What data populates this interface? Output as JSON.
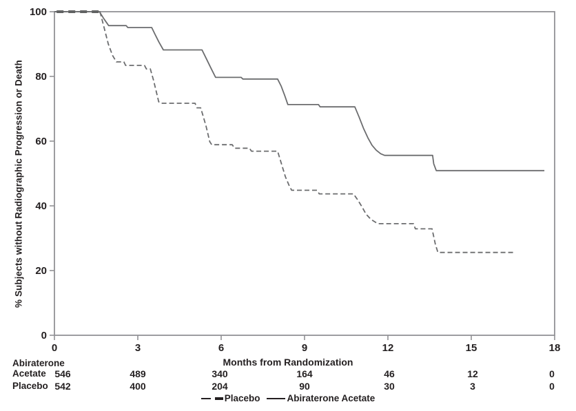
{
  "figure": {
    "y_axis_title": "% Subjects without Radiographic Progression or Death",
    "x_axis_title": "Months from Randomization"
  },
  "chart_data": {
    "type": "line",
    "subtype": "kaplan-meier-step-curves",
    "title": "",
    "xlabel": "Months from Randomization",
    "ylabel": "% Subjects without Radiographic Progression or Death",
    "xlim": [
      0,
      18
    ],
    "ylim": [
      0,
      100
    ],
    "xticks": [
      "0",
      "3",
      "6",
      "9",
      "12",
      "15",
      "18"
    ],
    "xtick_values": [
      0,
      3,
      6,
      9,
      12,
      15,
      18
    ],
    "yticks": [
      "0",
      "20",
      "40",
      "60",
      "80",
      "100"
    ],
    "ytick_values": [
      0,
      20,
      40,
      60,
      80,
      100
    ],
    "grid": false,
    "framed_plot_box": true,
    "axis_color": "#919195",
    "text_color": "#231f20",
    "legend_position": "bottom-center",
    "series": [
      {
        "name": "Placebo",
        "style": "dashed",
        "color": "#6b6c6e",
        "line_width": 1.8,
        "dash_pattern": "7 4",
        "highlight_color": "#2b2b2b",
        "highlight_until_month": 1.64,
        "points": [
          [
            0,
            100
          ],
          [
            1.64,
            100
          ],
          [
            1.79,
            95.0
          ],
          [
            1.94,
            90.0
          ],
          [
            2.09,
            86.5
          ],
          [
            2.23,
            84.5
          ],
          [
            2.5,
            84.5
          ],
          [
            2.56,
            83.4
          ],
          [
            3.24,
            83.4
          ],
          [
            3.31,
            82.3
          ],
          [
            3.45,
            82.3
          ],
          [
            3.56,
            79.0
          ],
          [
            3.66,
            75.5
          ],
          [
            3.75,
            72.2
          ],
          [
            3.81,
            71.7
          ],
          [
            5.06,
            71.7
          ],
          [
            5.13,
            70.3
          ],
          [
            5.26,
            70.3
          ],
          [
            5.36,
            67.5
          ],
          [
            5.46,
            64.5
          ],
          [
            5.53,
            62.0
          ],
          [
            5.59,
            59.8
          ],
          [
            5.66,
            58.9
          ],
          [
            6.4,
            58.9
          ],
          [
            6.48,
            57.8
          ],
          [
            7.02,
            57.8
          ],
          [
            7.09,
            56.9
          ],
          [
            8.03,
            56.9
          ],
          [
            8.17,
            53.0
          ],
          [
            8.31,
            49.0
          ],
          [
            8.46,
            46.0
          ],
          [
            8.54,
            44.8
          ],
          [
            9.45,
            44.8
          ],
          [
            9.53,
            43.7
          ],
          [
            10.76,
            43.7
          ],
          [
            10.91,
            41.9
          ],
          [
            11.06,
            39.8
          ],
          [
            11.21,
            37.5
          ],
          [
            11.39,
            35.8
          ],
          [
            11.56,
            34.9
          ],
          [
            11.64,
            34.5
          ],
          [
            12.92,
            34.5
          ],
          [
            12.99,
            32.9
          ],
          [
            13.59,
            32.9
          ],
          [
            13.71,
            28.0
          ],
          [
            13.8,
            25.6
          ],
          [
            16.56,
            25.6
          ]
        ]
      },
      {
        "name": "Abiraterone Acetate",
        "style": "solid",
        "color": "#6b6c6e",
        "line_width": 1.8,
        "points": [
          [
            0,
            100
          ],
          [
            1.62,
            100
          ],
          [
            1.78,
            97.8
          ],
          [
            1.95,
            95.7
          ],
          [
            2.58,
            95.7
          ],
          [
            2.64,
            95.1
          ],
          [
            3.5,
            95.1
          ],
          [
            3.62,
            93.0
          ],
          [
            3.76,
            90.6
          ],
          [
            3.92,
            88.2
          ],
          [
            5.31,
            88.2
          ],
          [
            5.46,
            85.6
          ],
          [
            5.63,
            82.6
          ],
          [
            5.8,
            79.7
          ],
          [
            6.72,
            79.7
          ],
          [
            6.78,
            79.2
          ],
          [
            8.03,
            79.2
          ],
          [
            8.16,
            77.0
          ],
          [
            8.29,
            74.0
          ],
          [
            8.4,
            71.3
          ],
          [
            9.5,
            71.3
          ],
          [
            9.56,
            70.6
          ],
          [
            10.81,
            70.6
          ],
          [
            10.96,
            67.5
          ],
          [
            11.12,
            64.0
          ],
          [
            11.28,
            61.0
          ],
          [
            11.43,
            58.7
          ],
          [
            11.58,
            57.2
          ],
          [
            11.74,
            56.1
          ],
          [
            11.88,
            55.6
          ],
          [
            13.61,
            55.6
          ],
          [
            13.65,
            53.0
          ],
          [
            13.74,
            50.9
          ],
          [
            17.63,
            50.9
          ]
        ]
      }
    ]
  },
  "risk_table": {
    "row1_label_line1": "Abiraterone",
    "row1_label_line2": "Acetate",
    "row2_label": "Placebo",
    "rows": [
      {
        "name": "Abiraterone Acetate",
        "values": [
          "546",
          "489",
          "340",
          "164",
          "46",
          "12",
          "0"
        ]
      },
      {
        "name": "Placebo",
        "values": [
          "542",
          "400",
          "204",
          "90",
          "30",
          "3",
          "0"
        ]
      }
    ]
  },
  "legend": [
    {
      "label": "Placebo",
      "style": "dashed"
    },
    {
      "label": "Abiraterone Acetate",
      "style": "solid"
    }
  ]
}
